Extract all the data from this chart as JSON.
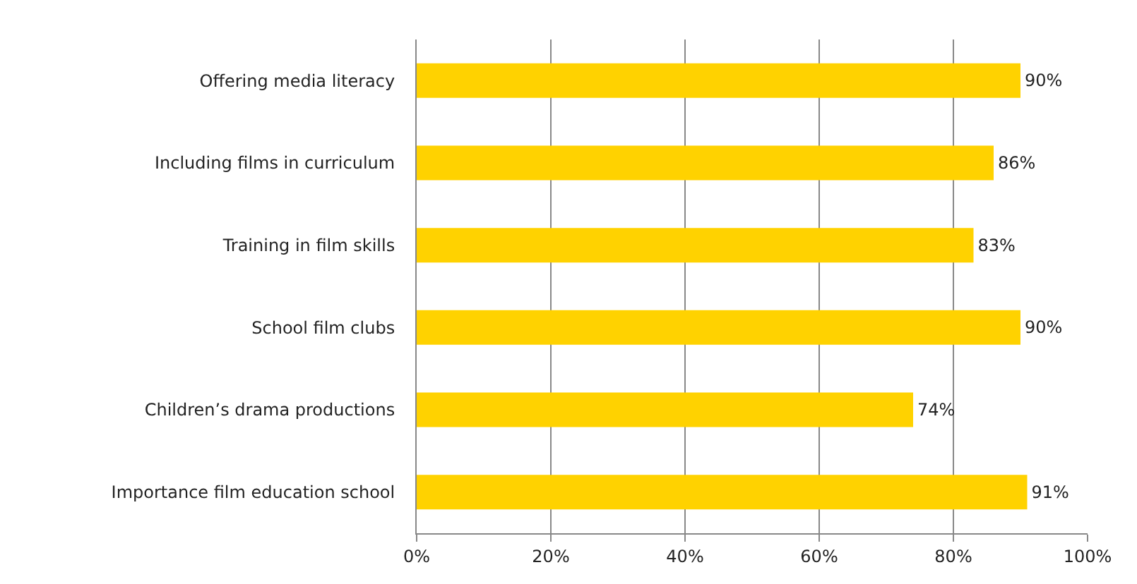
{
  "chart_data": {
    "type": "bar",
    "orientation": "horizontal",
    "categories": [
      "Offering media literacy",
      "Including films in curriculum",
      "Training in film skills",
      "School film clubs",
      "Children’s drama productions",
      "Importance film education school"
    ],
    "values": [
      90,
      86,
      83,
      90,
      74,
      91
    ],
    "value_labels": [
      "90%",
      "86%",
      "83%",
      "90%",
      "74%",
      "91%"
    ],
    "color": "#ffd200",
    "xlim": [
      0,
      100
    ],
    "xticks": [
      {
        "value": 0,
        "label": "0%"
      },
      {
        "value": 20,
        "label": "20%"
      },
      {
        "value": 40,
        "label": "40%"
      },
      {
        "value": 60,
        "label": "60%"
      },
      {
        "value": 80,
        "label": "80%"
      },
      {
        "value": 100,
        "label": "100%"
      }
    ],
    "grid": "x",
    "legend": false
  }
}
